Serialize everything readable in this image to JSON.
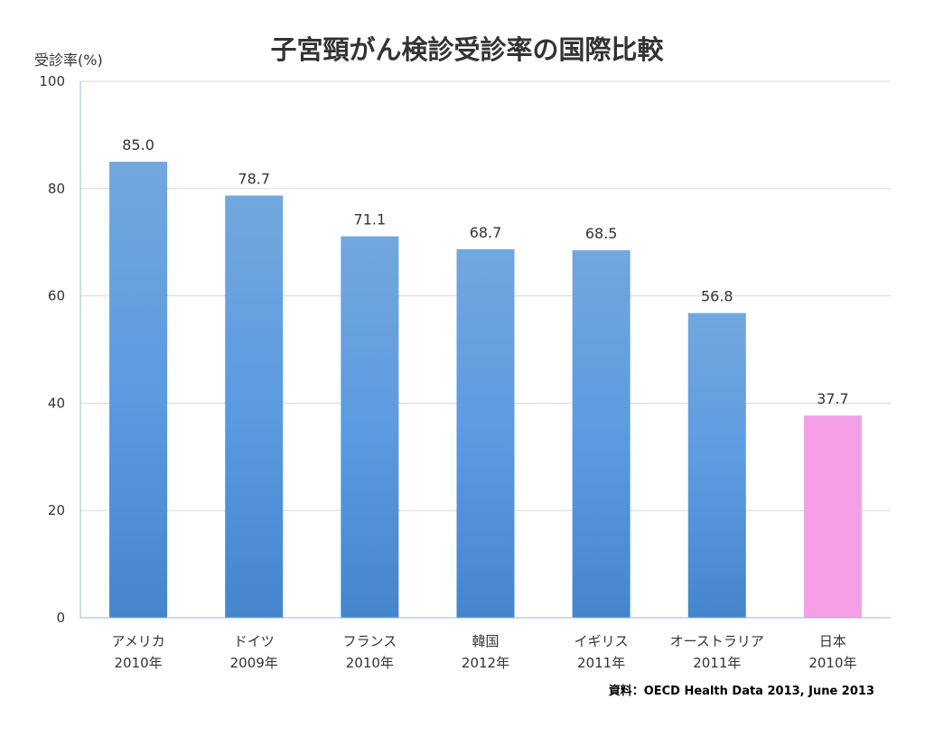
{
  "chart_data": {
    "type": "bar",
    "title": "子宮頸がん検診受診率の国際比較",
    "ylabel": "受診率(%)",
    "xlabel": "",
    "ylim": [
      0,
      100
    ],
    "yticks": [
      0,
      20,
      40,
      60,
      80,
      100
    ],
    "grid": true,
    "categories": [
      {
        "country": "アメリカ",
        "year": "2010年"
      },
      {
        "country": "ドイツ",
        "year": "2009年"
      },
      {
        "country": "フランス",
        "year": "2010年"
      },
      {
        "country": "韓国",
        "year": "2012年"
      },
      {
        "country": "イギリス",
        "year": "2011年"
      },
      {
        "country": "オーストラリア",
        "year": "2011年"
      },
      {
        "country": "日本",
        "year": "2010年"
      }
    ],
    "values": [
      85.0,
      78.7,
      71.1,
      68.7,
      68.5,
      56.8,
      37.7
    ],
    "data_labels": [
      "85.0",
      "78.7",
      "71.1",
      "68.7",
      "68.5",
      "56.8",
      "37.7"
    ],
    "colors": [
      "#4f8fd6",
      "#4f8fd6",
      "#4f8fd6",
      "#4f8fd6",
      "#4f8fd6",
      "#4f8fd6",
      "#f5a0e6"
    ],
    "source": "資料：OECD Health Data 2013, June 2013"
  }
}
